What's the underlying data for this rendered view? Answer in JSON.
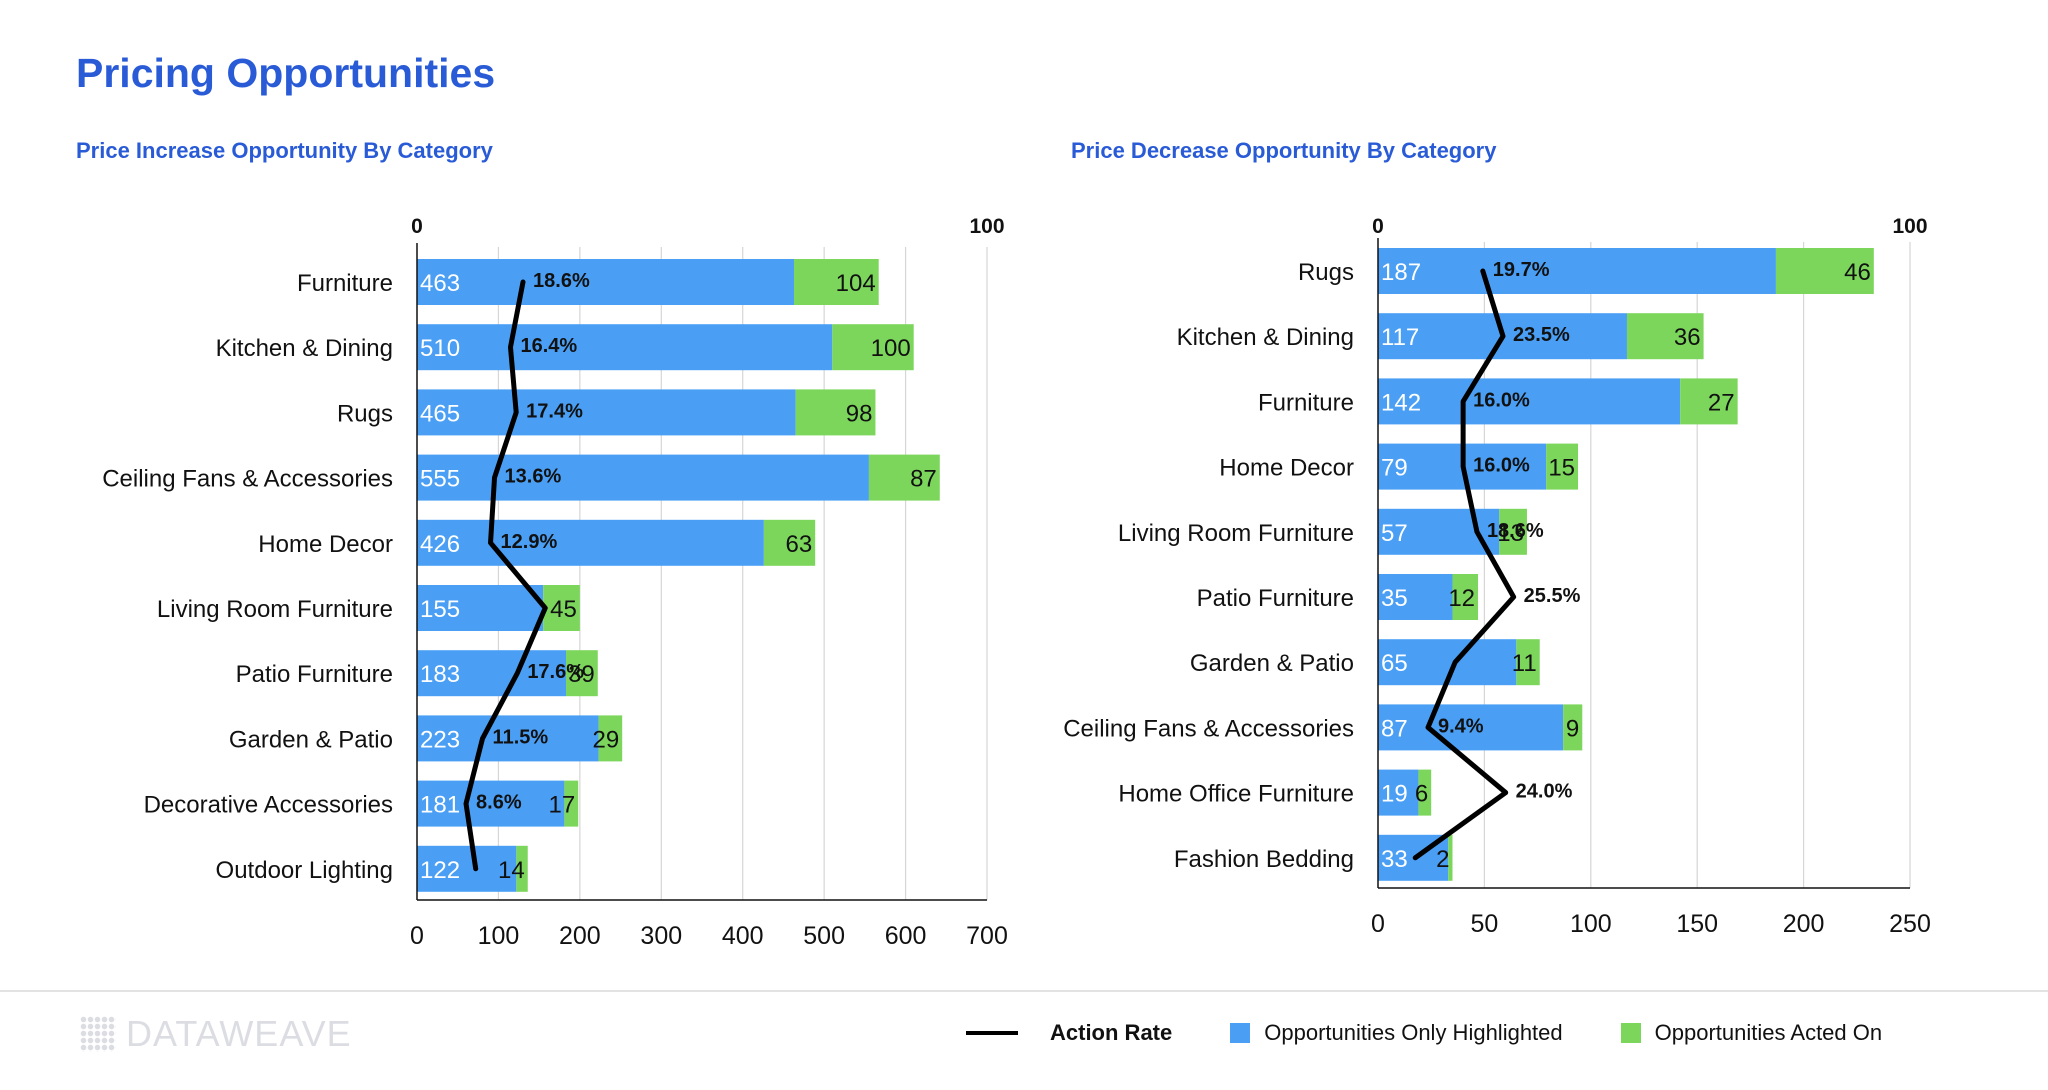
{
  "page_title": "Pricing Opportunities",
  "legend": {
    "action_rate": "Action Rate",
    "highlighted": "Opportunities Only Highlighted",
    "acted": "Opportunities Acted On"
  },
  "colors": {
    "highlighted": "#4a9ff5",
    "acted": "#7dd65c",
    "action_rate": "#000000",
    "title": "#2a5bd7"
  },
  "logo": {
    "text": "DATAWEAVE"
  },
  "chart_data": [
    {
      "type": "bar",
      "orientation": "horizontal",
      "stacked": true,
      "title": "Price Increase Opportunity By Category",
      "categories": [
        "Furniture",
        "Kitchen & Dining",
        "Rugs",
        "Ceiling Fans & Accessories",
        "Home Decor",
        "Living Room Furniture",
        "Patio Furniture",
        "Garden & Patio",
        "Decorative Accessories",
        "Outdoor Lighting"
      ],
      "series": [
        {
          "name": "Opportunities Only Highlighted",
          "values": [
            463,
            510,
            465,
            555,
            426,
            155,
            183,
            223,
            181,
            122
          ]
        },
        {
          "name": "Opportunities Acted On",
          "values": [
            104,
            100,
            98,
            87,
            63,
            45,
            39,
            29,
            17,
            14
          ]
        }
      ],
      "action_rate": {
        "name": "Action Rate",
        "values": [
          18.6,
          16.4,
          17.4,
          13.6,
          12.9,
          22.5,
          17.6,
          11.5,
          8.6,
          10.3
        ],
        "labels": [
          "18.6%",
          "16.4%",
          "17.4%",
          "13.6%",
          "12.9%",
          "",
          "17.6%",
          "11.5%",
          "8.6%",
          ""
        ],
        "axis_range": [
          0,
          100
        ],
        "axis_ticks": [
          0,
          100
        ]
      },
      "xlim": [
        0,
        700
      ],
      "xticks": [
        0,
        100,
        200,
        300,
        400,
        500,
        600,
        700
      ],
      "grid": true
    },
    {
      "type": "bar",
      "orientation": "horizontal",
      "stacked": true,
      "title": "Price Decrease Opportunity By Category",
      "categories": [
        "Rugs",
        "Kitchen & Dining",
        "Furniture",
        "Home Decor",
        "Living Room Furniture",
        "Patio Furniture",
        "Garden & Patio",
        "Ceiling Fans & Accessories",
        "Home Office Furniture",
        "Fashion Bedding"
      ],
      "series": [
        {
          "name": "Opportunities Only Highlighted",
          "values": [
            187,
            117,
            142,
            79,
            57,
            35,
            65,
            87,
            19,
            33
          ]
        },
        {
          "name": "Opportunities Acted On",
          "values": [
            46,
            36,
            27,
            15,
            13,
            12,
            11,
            9,
            6,
            2
          ]
        }
      ],
      "action_rate": {
        "name": "Action Rate",
        "values": [
          19.7,
          23.5,
          16.0,
          16.0,
          18.6,
          25.5,
          14.5,
          9.4,
          24.0,
          7.0
        ],
        "labels": [
          "19.7%",
          "23.5%",
          "16.0%",
          "16.0%",
          "18.6%",
          "25.5%",
          "",
          "9.4%",
          "24.0%",
          ""
        ],
        "axis_range": [
          0,
          100
        ],
        "axis_ticks": [
          0,
          100
        ]
      },
      "xlim": [
        0,
        250
      ],
      "xticks": [
        0,
        50,
        100,
        150,
        200,
        250
      ],
      "grid": true
    }
  ]
}
